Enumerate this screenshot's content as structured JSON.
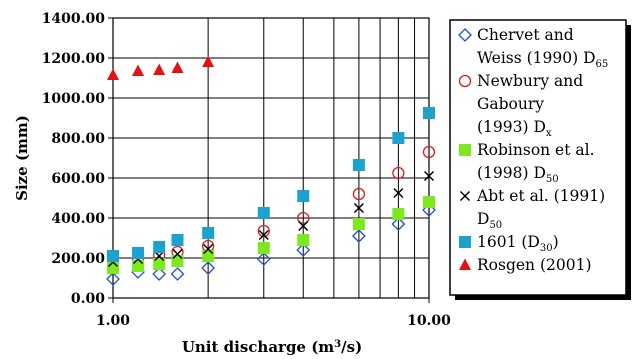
{
  "chart_data": {
    "type": "scatter",
    "x_scale": "log",
    "xlim": [
      1,
      10
    ],
    "ylim": [
      0,
      1400
    ],
    "grid": true,
    "legend_position": "right",
    "title": "",
    "xlabel": "Unit discharge (m",
    "xlabel_sup": "3",
    "xlabel_tail": "/s)",
    "ylabel": "Size (mm)",
    "y_ticks": [
      0,
      200,
      400,
      600,
      800,
      1000,
      1200,
      1400
    ],
    "y_tick_labels": [
      "0.00",
      "200.00",
      "400.00",
      "600.00",
      "800.00",
      "1000.00",
      "1200.00",
      "1400.00"
    ],
    "x_tick_labels": [
      {
        "x": 1,
        "label": "1.00"
      },
      {
        "x": 10,
        "label": "10.00"
      }
    ],
    "x_gridlines": [
      1,
      2,
      3,
      4,
      5,
      6,
      7,
      8,
      9,
      10
    ],
    "series": [
      {
        "name_lines": [
          {
            "text": "Chervet and"
          },
          {
            "text": "Weiss (1990) D",
            "sub": "65"
          }
        ],
        "marker": "diamond-open",
        "color": "#1f4fd6",
        "x": [
          1.0,
          1.2,
          1.4,
          1.6,
          2.0,
          3.0,
          4.0,
          6.0,
          8.0,
          10.0
        ],
        "y": [
          95,
          130,
          120,
          120,
          150,
          195,
          240,
          310,
          370,
          440
        ]
      },
      {
        "name_lines": [
          {
            "text": "Newbury and"
          },
          {
            "text": "Gaboury"
          },
          {
            "text": "(1993) D",
            "sub": "x"
          }
        ],
        "marker": "circle-open",
        "color": "#e41a1a",
        "x": [
          1.0,
          1.2,
          1.4,
          1.6,
          2.0,
          3.0,
          4.0,
          6.0,
          8.0,
          10.0
        ],
        "y": [
          190,
          200,
          215,
          230,
          260,
          335,
          400,
          520,
          625,
          730
        ]
      },
      {
        "name_lines": [
          {
            "text": "Robinson et al."
          },
          {
            "text": "(1998) D",
            "sub": "50"
          }
        ],
        "marker": "square-filled",
        "color": "#7ee81f",
        "x": [
          1.0,
          1.2,
          1.4,
          1.6,
          2.0,
          3.0,
          4.0,
          6.0,
          8.0,
          10.0
        ],
        "y": [
          150,
          160,
          170,
          185,
          210,
          250,
          290,
          370,
          420,
          480
        ]
      },
      {
        "name_lines": [
          {
            "text": "Abt et al. (1991)"
          },
          {
            "text": "D",
            "sub": "50"
          }
        ],
        "marker": "x",
        "color": "#000000",
        "x": [
          1.0,
          1.2,
          1.4,
          1.6,
          2.0,
          3.0,
          4.0,
          6.0,
          8.0,
          10.0
        ],
        "y": [
          180,
          195,
          210,
          220,
          245,
          315,
          360,
          450,
          525,
          610
        ]
      },
      {
        "name_lines": [
          {
            "text": "1601 (D",
            "sub": "30",
            "tail": ")"
          }
        ],
        "marker": "square-filled",
        "color": "#1aa3d1",
        "x": [
          1.0,
          1.2,
          1.4,
          1.6,
          2.0,
          3.0,
          4.0,
          6.0,
          8.0,
          10.0
        ],
        "y": [
          210,
          225,
          255,
          290,
          325,
          425,
          510,
          665,
          800,
          925
        ]
      },
      {
        "name_lines": [
          {
            "text": "Rosgen (2001)"
          }
        ],
        "marker": "triangle-filled",
        "color": "#e80f0f",
        "x": [
          1.0,
          1.2,
          1.4,
          1.6,
          2.0
        ],
        "y": [
          1115,
          1135,
          1140,
          1150,
          1180
        ]
      }
    ]
  }
}
